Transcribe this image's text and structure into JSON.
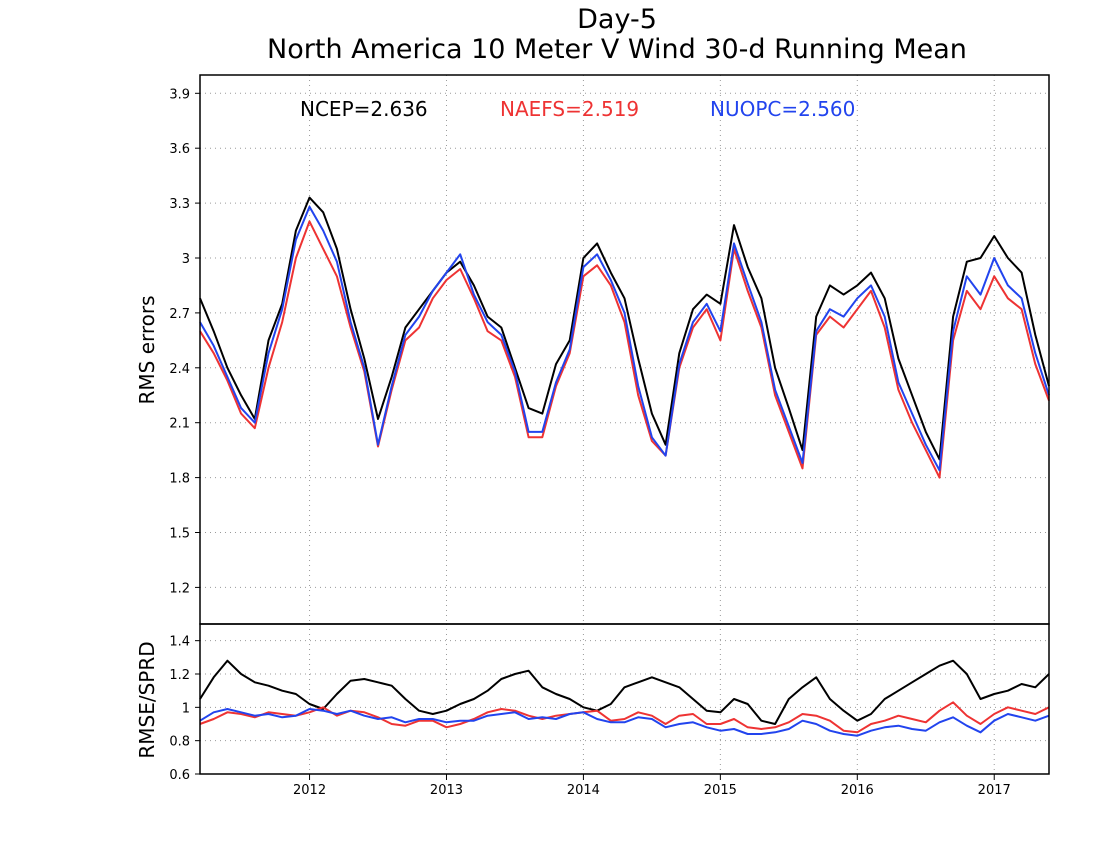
{
  "title_line1": "Day-5",
  "title_line2": "North America 10 Meter V Wind 30-d Running Mean",
  "colors": {
    "NCEP": "#000000",
    "NAEFS": "#ee3333",
    "NUOPC": "#2244ee"
  },
  "stats": [
    {
      "key": "NCEP",
      "label": "NCEP=2.636"
    },
    {
      "key": "NAEFS",
      "label": "NAEFS=2.519"
    },
    {
      "key": "NUOPC",
      "label": "NUOPC=2.560"
    }
  ],
  "chart_data": [
    {
      "type": "line",
      "ylabel": "RMS errors",
      "ylim": [
        1.0,
        4.0
      ],
      "yticks": [
        1.2,
        1.5,
        1.8,
        2.1,
        2.4,
        2.7,
        3.0,
        3.3,
        3.6,
        3.9
      ],
      "ytick_labels": [
        "1.2",
        "1.5",
        "1.8",
        "2.1",
        "2.4",
        "2.7",
        "3",
        "3.3",
        "3.6",
        "3.9"
      ],
      "xlim": [
        2011.2,
        2017.4
      ],
      "grid": true,
      "legend": "top",
      "x": [
        2011.2,
        2011.3,
        2011.4,
        2011.5,
        2011.6,
        2011.7,
        2011.8,
        2011.9,
        2012.0,
        2012.1,
        2012.2,
        2012.3,
        2012.4,
        2012.5,
        2012.6,
        2012.7,
        2012.8,
        2012.9,
        2013.0,
        2013.1,
        2013.2,
        2013.3,
        2013.4,
        2013.5,
        2013.6,
        2013.7,
        2013.8,
        2013.9,
        2014.0,
        2014.1,
        2014.2,
        2014.3,
        2014.4,
        2014.5,
        2014.6,
        2014.7,
        2014.8,
        2014.9,
        2015.0,
        2015.1,
        2015.2,
        2015.3,
        2015.4,
        2015.5,
        2015.6,
        2015.7,
        2015.8,
        2015.9,
        2016.0,
        2016.1,
        2016.2,
        2016.3,
        2016.4,
        2016.5,
        2016.6,
        2016.7,
        2016.8,
        2016.9,
        2017.0,
        2017.1,
        2017.2,
        2017.3,
        2017.4
      ],
      "series": [
        {
          "name": "NCEP",
          "values": [
            2.78,
            2.6,
            2.4,
            2.25,
            2.12,
            2.55,
            2.75,
            3.15,
            3.33,
            3.25,
            3.05,
            2.72,
            2.45,
            2.12,
            2.35,
            2.62,
            2.72,
            2.82,
            2.92,
            2.98,
            2.85,
            2.68,
            2.62,
            2.4,
            2.18,
            2.15,
            2.42,
            2.55,
            3.0,
            3.08,
            2.92,
            2.78,
            2.45,
            2.15,
            1.98,
            2.48,
            2.72,
            2.8,
            2.75,
            3.18,
            2.95,
            2.78,
            2.4,
            2.18,
            1.95,
            2.68,
            2.85,
            2.8,
            2.85,
            2.92,
            2.78,
            2.45,
            2.25,
            2.05,
            1.9,
            2.68,
            2.98,
            3.0,
            3.12,
            3.0,
            2.92,
            2.58,
            2.3
          ]
        },
        {
          "name": "NAEFS",
          "values": [
            2.6,
            2.48,
            2.33,
            2.15,
            2.07,
            2.4,
            2.65,
            3.0,
            3.2,
            3.05,
            2.9,
            2.62,
            2.38,
            1.97,
            2.28,
            2.55,
            2.62,
            2.78,
            2.88,
            2.94,
            2.78,
            2.6,
            2.55,
            2.35,
            2.02,
            2.02,
            2.3,
            2.48,
            2.9,
            2.96,
            2.85,
            2.65,
            2.25,
            2.0,
            1.92,
            2.4,
            2.62,
            2.72,
            2.55,
            3.05,
            2.82,
            2.62,
            2.25,
            2.05,
            1.85,
            2.58,
            2.68,
            2.62,
            2.72,
            2.82,
            2.62,
            2.28,
            2.1,
            1.95,
            1.8,
            2.55,
            2.82,
            2.72,
            2.9,
            2.78,
            2.72,
            2.42,
            2.22
          ]
        },
        {
          "name": "NUOPC",
          "values": [
            2.65,
            2.52,
            2.35,
            2.18,
            2.1,
            2.48,
            2.72,
            3.1,
            3.28,
            3.15,
            2.98,
            2.65,
            2.4,
            1.98,
            2.3,
            2.58,
            2.68,
            2.82,
            2.92,
            3.02,
            2.8,
            2.65,
            2.58,
            2.38,
            2.05,
            2.05,
            2.32,
            2.5,
            2.95,
            3.02,
            2.88,
            2.7,
            2.3,
            2.02,
            1.92,
            2.42,
            2.65,
            2.75,
            2.6,
            3.08,
            2.86,
            2.65,
            2.28,
            2.08,
            1.88,
            2.6,
            2.72,
            2.68,
            2.78,
            2.85,
            2.68,
            2.32,
            2.15,
            1.98,
            1.84,
            2.6,
            2.9,
            2.8,
            3.0,
            2.85,
            2.78,
            2.48,
            2.25
          ]
        }
      ]
    },
    {
      "type": "line",
      "ylabel": "RMSE/SPRD",
      "ylim": [
        0.6,
        1.5
      ],
      "yticks": [
        0.6,
        0.8,
        1.0,
        1.2,
        1.4
      ],
      "ytick_labels": [
        "0.6",
        "0.8",
        "1",
        "1.2",
        "1.4"
      ],
      "xlim": [
        2011.2,
        2017.4
      ],
      "xticks": [
        2012,
        2013,
        2014,
        2015,
        2016,
        2017
      ],
      "xtick_labels": [
        "2012",
        "2013",
        "2014",
        "2015",
        "2016",
        "2017"
      ],
      "grid": true,
      "x": [
        2011.2,
        2011.3,
        2011.4,
        2011.5,
        2011.6,
        2011.7,
        2011.8,
        2011.9,
        2012.0,
        2012.1,
        2012.2,
        2012.3,
        2012.4,
        2012.5,
        2012.6,
        2012.7,
        2012.8,
        2012.9,
        2013.0,
        2013.1,
        2013.2,
        2013.3,
        2013.4,
        2013.5,
        2013.6,
        2013.7,
        2013.8,
        2013.9,
        2014.0,
        2014.1,
        2014.2,
        2014.3,
        2014.4,
        2014.5,
        2014.6,
        2014.7,
        2014.8,
        2014.9,
        2015.0,
        2015.1,
        2015.2,
        2015.3,
        2015.4,
        2015.5,
        2015.6,
        2015.7,
        2015.8,
        2015.9,
        2016.0,
        2016.1,
        2016.2,
        2016.3,
        2016.4,
        2016.5,
        2016.6,
        2016.7,
        2016.8,
        2016.9,
        2017.0,
        2017.1,
        2017.2,
        2017.3,
        2017.4
      ],
      "series": [
        {
          "name": "NCEP",
          "values": [
            1.05,
            1.18,
            1.28,
            1.2,
            1.15,
            1.13,
            1.1,
            1.08,
            1.02,
            0.99,
            1.08,
            1.16,
            1.17,
            1.15,
            1.13,
            1.05,
            0.98,
            0.96,
            0.98,
            1.02,
            1.05,
            1.1,
            1.17,
            1.2,
            1.22,
            1.12,
            1.08,
            1.05,
            1.0,
            0.98,
            1.02,
            1.12,
            1.15,
            1.18,
            1.15,
            1.12,
            1.05,
            0.98,
            0.97,
            1.05,
            1.02,
            0.92,
            0.9,
            1.05,
            1.12,
            1.18,
            1.05,
            0.98,
            0.92,
            0.96,
            1.05,
            1.1,
            1.15,
            1.2,
            1.25,
            1.28,
            1.2,
            1.05,
            1.08,
            1.1,
            1.14,
            1.12,
            1.2
          ]
        },
        {
          "name": "NAEFS",
          "values": [
            0.9,
            0.93,
            0.97,
            0.96,
            0.94,
            0.97,
            0.96,
            0.95,
            0.97,
            1.0,
            0.95,
            0.98,
            0.97,
            0.94,
            0.9,
            0.89,
            0.92,
            0.92,
            0.88,
            0.9,
            0.93,
            0.97,
            0.99,
            0.98,
            0.95,
            0.93,
            0.95,
            0.96,
            0.97,
            0.98,
            0.92,
            0.93,
            0.97,
            0.95,
            0.9,
            0.95,
            0.96,
            0.9,
            0.9,
            0.93,
            0.88,
            0.87,
            0.88,
            0.91,
            0.96,
            0.95,
            0.92,
            0.86,
            0.85,
            0.9,
            0.92,
            0.95,
            0.93,
            0.91,
            0.98,
            1.03,
            0.95,
            0.9,
            0.96,
            1.0,
            0.98,
            0.96,
            1.0
          ]
        },
        {
          "name": "NUOPC",
          "values": [
            0.92,
            0.97,
            0.99,
            0.97,
            0.95,
            0.96,
            0.94,
            0.95,
            0.99,
            0.98,
            0.96,
            0.98,
            0.95,
            0.93,
            0.94,
            0.91,
            0.93,
            0.93,
            0.91,
            0.92,
            0.92,
            0.95,
            0.96,
            0.97,
            0.93,
            0.94,
            0.93,
            0.96,
            0.97,
            0.93,
            0.91,
            0.91,
            0.94,
            0.93,
            0.88,
            0.9,
            0.91,
            0.88,
            0.86,
            0.87,
            0.84,
            0.84,
            0.85,
            0.87,
            0.92,
            0.9,
            0.86,
            0.84,
            0.83,
            0.86,
            0.88,
            0.89,
            0.87,
            0.86,
            0.91,
            0.94,
            0.89,
            0.85,
            0.92,
            0.96,
            0.94,
            0.92,
            0.95
          ]
        }
      ]
    }
  ]
}
